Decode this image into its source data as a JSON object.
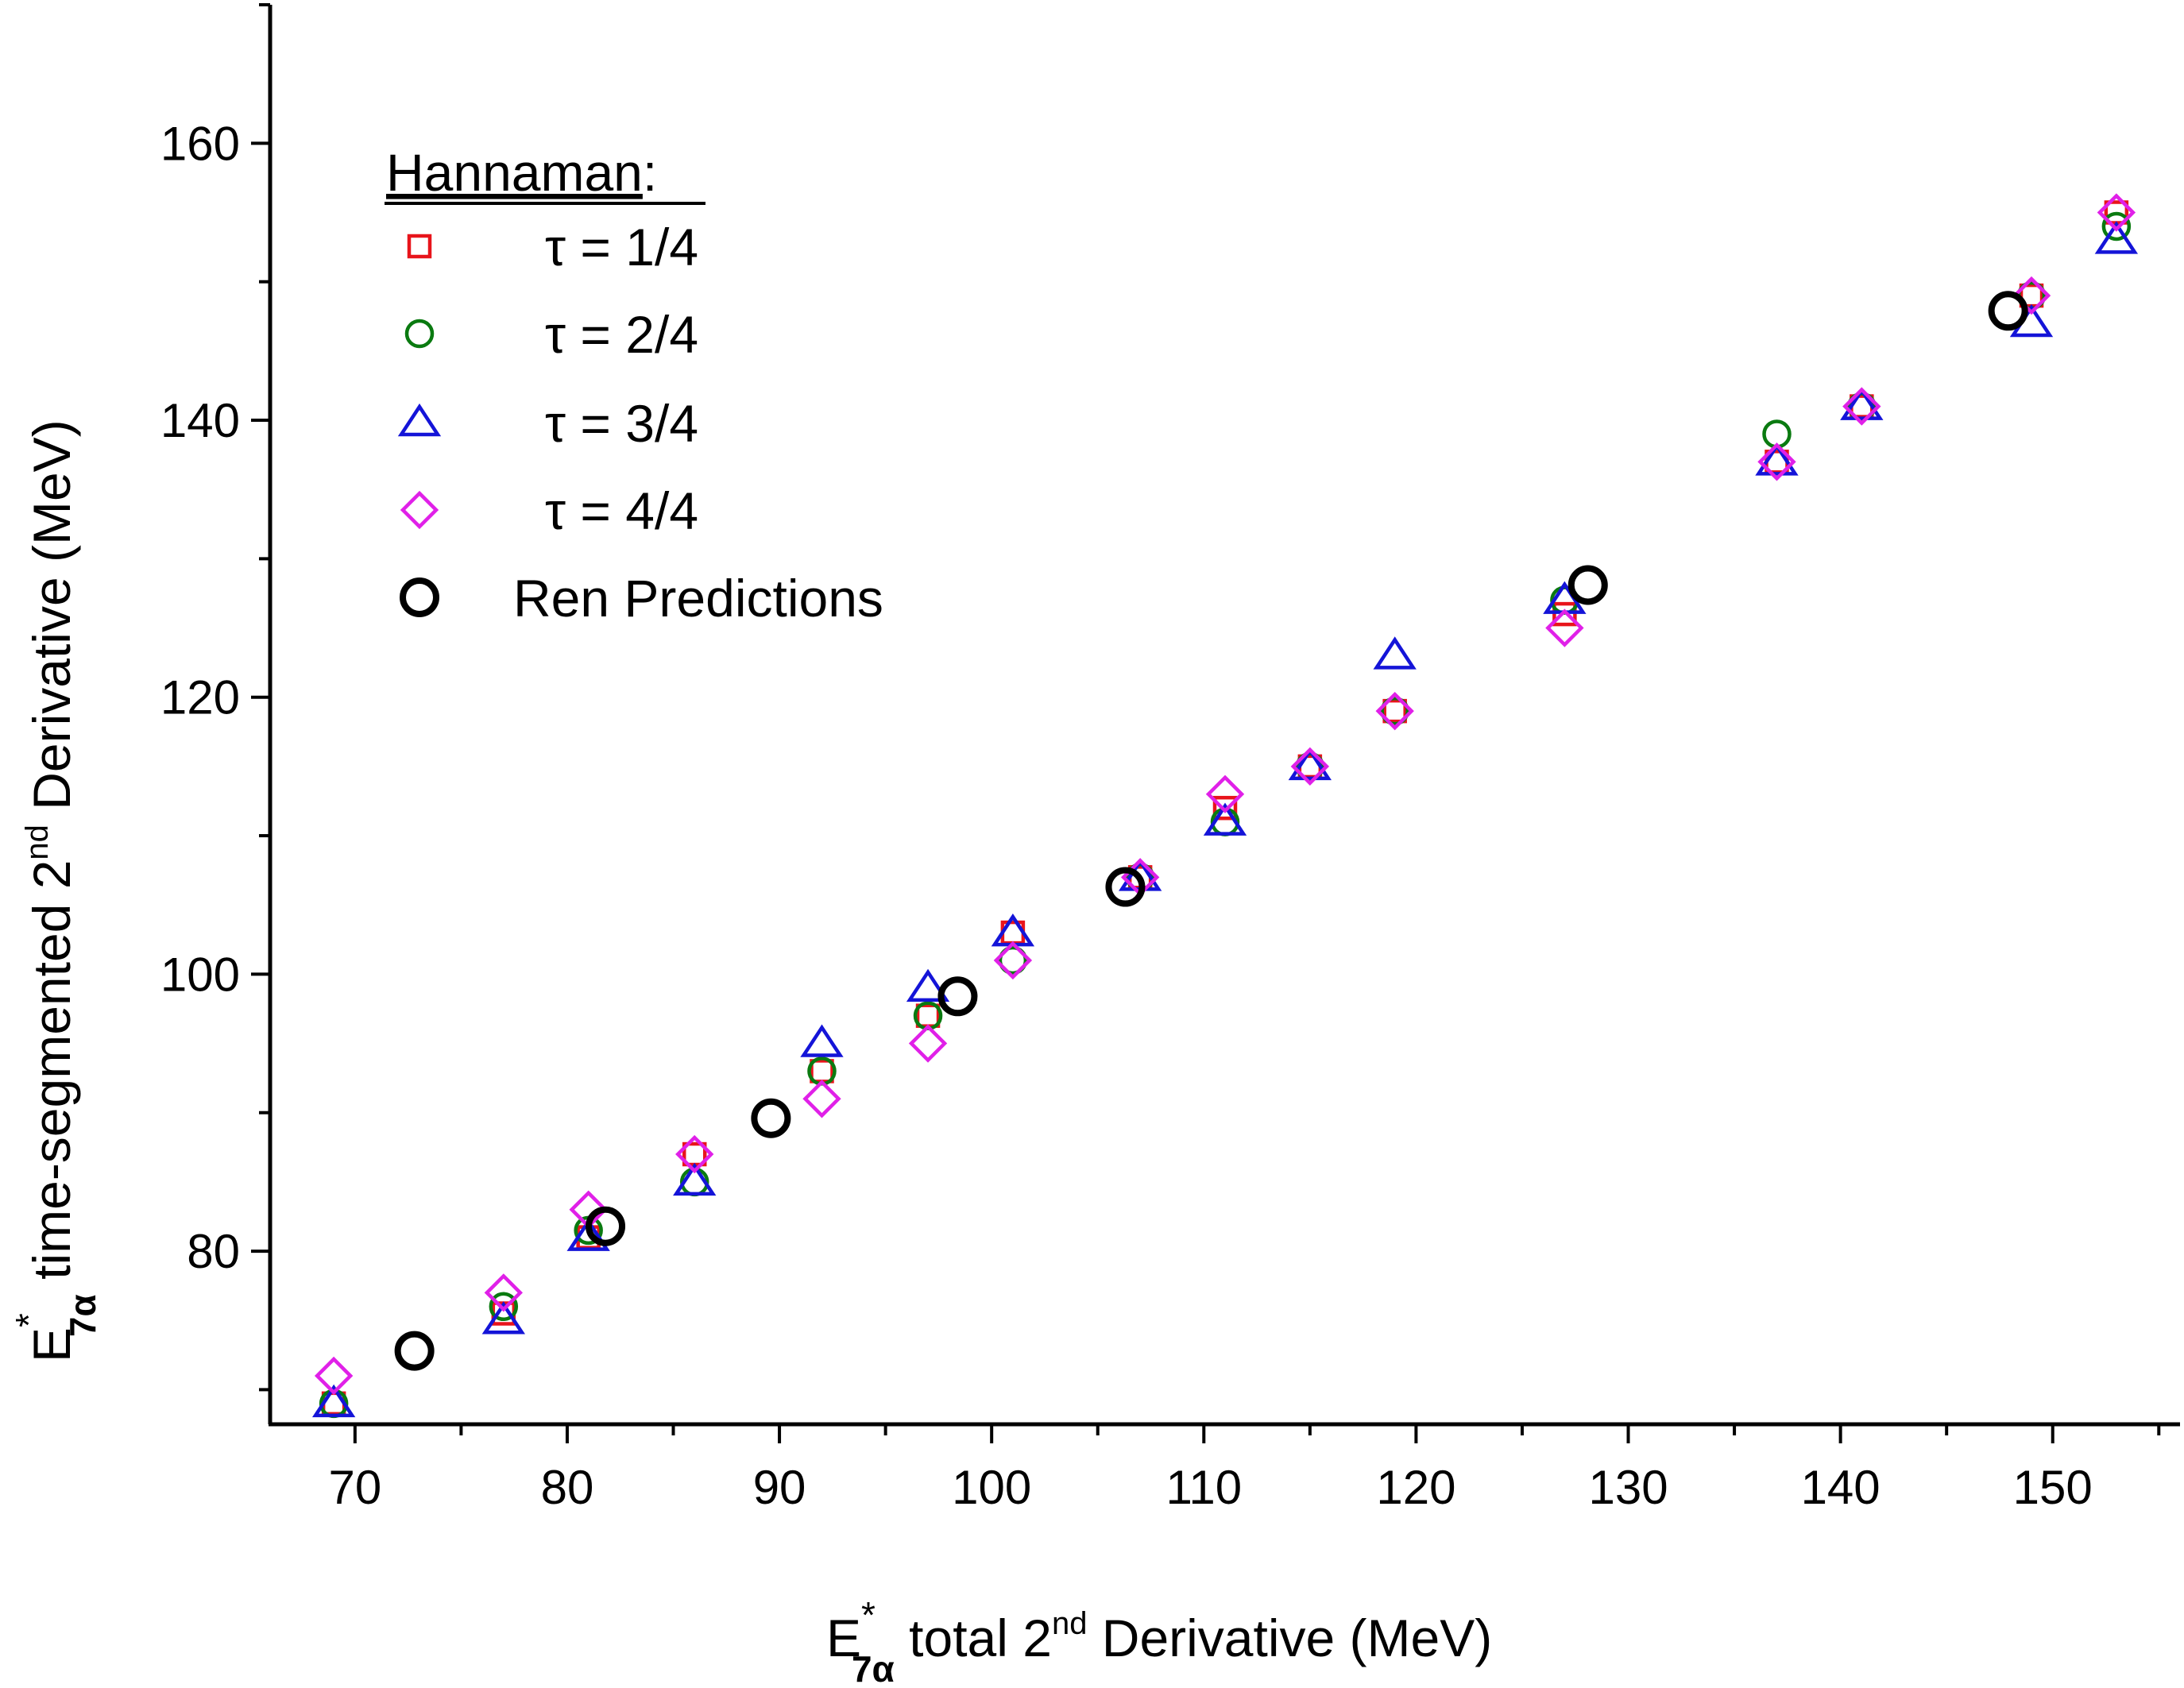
{
  "chart_data": {
    "type": "scatter",
    "title": "",
    "xlabel": {
      "symbol": "E",
      "sup": "*",
      "sub": "7α",
      "text_before": " total 2",
      "text_sup": "nd",
      "text_after": " Derivative (MeV)"
    },
    "ylabel": {
      "symbol": "E",
      "sup": "*",
      "sub": "7α",
      "text_before": " time-segmented 2",
      "text_sup": "nd",
      "text_after": " Derivative (MeV)"
    },
    "xlim": [
      66,
      156
    ],
    "ylim": [
      67.5,
      170
    ],
    "xticks": [
      70,
      80,
      90,
      100,
      110,
      120,
      130,
      140,
      150
    ],
    "yticks": [
      80,
      100,
      120,
      140,
      160
    ],
    "grid": false,
    "legend": {
      "title": "Hannaman",
      "title_suffix": ":",
      "placement": "top-left"
    },
    "series": [
      {
        "name": "τ = 1/4",
        "marker": "square",
        "color": "#e8141b",
        "points": [
          [
            69,
            69
          ],
          [
            77,
            75.5
          ],
          [
            81,
            81
          ],
          [
            86,
            87
          ],
          [
            92,
            93
          ],
          [
            97,
            97
          ],
          [
            101,
            103
          ],
          [
            107,
            107
          ],
          [
            111,
            112
          ],
          [
            115,
            115
          ],
          [
            119,
            119
          ],
          [
            127,
            126
          ],
          [
            137,
            137
          ],
          [
            141,
            141
          ],
          [
            149,
            149
          ],
          [
            153,
            155
          ]
        ]
      },
      {
        "name": "τ = 2/4",
        "marker": "circle",
        "color": "#0a7a10",
        "points": [
          [
            69,
            69
          ],
          [
            77,
            76
          ],
          [
            81,
            81.5
          ],
          [
            86,
            85
          ],
          [
            92,
            93
          ],
          [
            97,
            97
          ],
          [
            101,
            101
          ],
          [
            107,
            107
          ],
          [
            111,
            111
          ],
          [
            115,
            115
          ],
          [
            119,
            119
          ],
          [
            127,
            127
          ],
          [
            137,
            139
          ],
          [
            141,
            141
          ],
          [
            149,
            149
          ],
          [
            153,
            154
          ]
        ]
      },
      {
        "name": "τ = 3/4",
        "marker": "triangle",
        "color": "#1414d8",
        "points": [
          [
            69,
            69
          ],
          [
            77,
            75
          ],
          [
            81,
            81
          ],
          [
            86,
            85
          ],
          [
            92,
            95
          ],
          [
            97,
            99
          ],
          [
            101,
            103
          ],
          [
            107,
            107
          ],
          [
            111,
            111
          ],
          [
            115,
            115
          ],
          [
            119,
            123
          ],
          [
            127,
            127
          ],
          [
            137,
            137
          ],
          [
            141,
            141
          ],
          [
            149,
            147
          ],
          [
            153,
            153
          ]
        ]
      },
      {
        "name": "τ = 4/4",
        "marker": "diamond",
        "color": "#e020e8",
        "points": [
          [
            69,
            71
          ],
          [
            77,
            77
          ],
          [
            81,
            83
          ],
          [
            86,
            87
          ],
          [
            92,
            91
          ],
          [
            97,
            95
          ],
          [
            101,
            101
          ],
          [
            107,
            107
          ],
          [
            111,
            113
          ],
          [
            115,
            115
          ],
          [
            119,
            119
          ],
          [
            127,
            125
          ],
          [
            137,
            137
          ],
          [
            141,
            141
          ],
          [
            149,
            149
          ],
          [
            153,
            155
          ]
        ]
      },
      {
        "name": "Ren Predictions",
        "marker": "circle-large",
        "color": "#000000",
        "points": [
          [
            72.8,
            72.8
          ],
          [
            81.8,
            81.8
          ],
          [
            89.6,
            89.6
          ],
          [
            98.4,
            98.4
          ],
          [
            106.3,
            106.3
          ],
          [
            128.1,
            128.1
          ],
          [
            147.9,
            147.9
          ]
        ]
      }
    ]
  }
}
